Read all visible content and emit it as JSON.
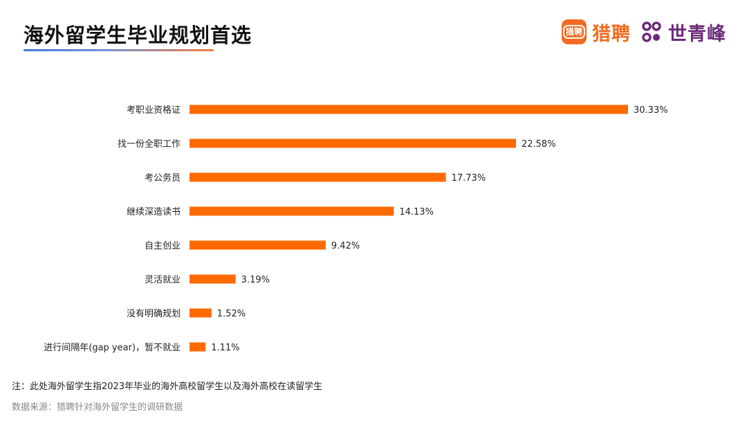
{
  "header": {
    "title": "海外留学生毕业规划首选"
  },
  "brand": {
    "badge_text": "猎聘",
    "name_1": "猎聘",
    "name_2": "世青峰",
    "icon": "liepin-logo-icon",
    "mark_icon": "shiqingfeng-logo-icon",
    "color_orange": "#f26a1f",
    "color_purple": "#6c2a7a"
  },
  "chart_data": {
    "type": "bar",
    "orientation": "horizontal",
    "categories": [
      "考职业资格证",
      "找一份全职工作",
      "考公务员",
      "继续深造读书",
      "自主创业",
      "灵活就业",
      "没有明确规划",
      "进行间隔年(gap year)，暂不就业"
    ],
    "values": [
      30.33,
      22.58,
      17.73,
      14.13,
      9.42,
      3.19,
      1.52,
      1.11
    ],
    "value_labels": [
      "30.33%",
      "22.58%",
      "17.73%",
      "14.13%",
      "9.42%",
      "3.19%",
      "1.52%",
      "1.11%"
    ],
    "unit": "%",
    "bar_color": "#ff6a00",
    "xlim": [
      0,
      30.33
    ],
    "grid": false,
    "legend": "none"
  },
  "footer": {
    "note": "注：此处海外留学生指2023年毕业的海外高校留学生以及海外高校在读留学生",
    "source": "数据来源：猎聘针对海外留学生的调研数据"
  }
}
